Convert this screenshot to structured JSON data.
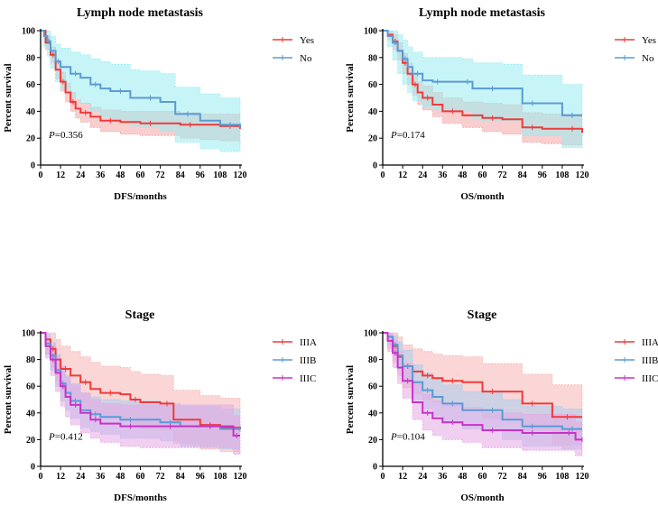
{
  "chart_data": [
    {
      "type": "line",
      "title": "Lymph node metastasis",
      "xlabel": "DFS/months",
      "ylabel": "Percent survival",
      "xlim": [
        0,
        120
      ],
      "ylim": [
        0,
        100
      ],
      "xticks": [
        0,
        12,
        24,
        36,
        48,
        60,
        72,
        84,
        96,
        108,
        120
      ],
      "yticks": [
        0,
        20,
        40,
        60,
        80,
        100
      ],
      "legend_position": "top-right",
      "p_prefix": "P",
      "p_value": "=0.356",
      "series": [
        {
          "name": "Yes",
          "color": "#ee3b3b",
          "band_color": "#f4a5a5",
          "x": [
            0,
            3,
            6,
            9,
            12,
            15,
            18,
            21,
            24,
            30,
            36,
            48,
            60,
            72,
            84,
            96,
            108,
            120
          ],
          "y": [
            100,
            91,
            82,
            71,
            62,
            54,
            47,
            42,
            39,
            36,
            33,
            32,
            31,
            31,
            30,
            30,
            29,
            27
          ],
          "lower": [
            100,
            86,
            76,
            64,
            55,
            47,
            40,
            35,
            32,
            28,
            25,
            23,
            22,
            22,
            20,
            19,
            18,
            16
          ],
          "upper": [
            100,
            96,
            88,
            78,
            69,
            61,
            54,
            49,
            46,
            43,
            41,
            40,
            40,
            40,
            39,
            38,
            38,
            38
          ]
        },
        {
          "name": "No",
          "color": "#5b9bd5",
          "band_color": "#99ecf0",
          "x": [
            0,
            2,
            4,
            6,
            9,
            12,
            18,
            24,
            30,
            36,
            42,
            54,
            60,
            72,
            81,
            96,
            108,
            120
          ],
          "y": [
            100,
            96,
            92,
            85,
            77,
            73,
            68,
            65,
            60,
            57,
            55,
            50,
            50,
            47,
            38,
            33,
            30,
            28
          ],
          "lower": [
            100,
            88,
            81,
            72,
            62,
            57,
            50,
            46,
            40,
            36,
            34,
            29,
            28,
            25,
            17,
            12,
            10,
            10
          ],
          "upper": [
            100,
            100,
            100,
            96,
            90,
            87,
            84,
            82,
            79,
            77,
            75,
            71,
            70,
            68,
            58,
            53,
            50,
            48
          ]
        }
      ]
    },
    {
      "type": "line",
      "title": "Lymph node metastasis",
      "xlabel": "OS/month",
      "ylabel": "Percent survival",
      "xlim": [
        0,
        120
      ],
      "ylim": [
        0,
        100
      ],
      "xticks": [
        0,
        12,
        24,
        36,
        48,
        60,
        72,
        84,
        96,
        108,
        120
      ],
      "yticks": [
        0,
        20,
        40,
        60,
        80,
        100
      ],
      "legend_position": "top-right",
      "p_prefix": "P",
      "p_value": "=0.174",
      "series": [
        {
          "name": "Yes",
          "color": "#ee3b3b",
          "band_color": "#f4a5a5",
          "x": [
            0,
            3,
            6,
            9,
            12,
            15,
            18,
            21,
            24,
            30,
            36,
            48,
            60,
            72,
            84,
            96,
            108,
            120
          ],
          "y": [
            100,
            97,
            92,
            85,
            76,
            68,
            60,
            54,
            50,
            45,
            40,
            37,
            35,
            34,
            28,
            27,
            27,
            24
          ],
          "lower": [
            100,
            93,
            86,
            78,
            68,
            60,
            52,
            45,
            41,
            36,
            31,
            28,
            25,
            23,
            17,
            16,
            15,
            14
          ],
          "upper": [
            100,
            100,
            97,
            91,
            83,
            76,
            68,
            62,
            59,
            54,
            50,
            47,
            46,
            45,
            39,
            38,
            38,
            36
          ]
        },
        {
          "name": "No",
          "color": "#5b9bd5",
          "band_color": "#99ecf0",
          "x": [
            0,
            3,
            6,
            9,
            12,
            15,
            18,
            24,
            30,
            36,
            48,
            54,
            60,
            72,
            84,
            96,
            108,
            120
          ],
          "y": [
            100,
            96,
            91,
            85,
            79,
            73,
            68,
            63,
            62,
            62,
            62,
            57,
            57,
            57,
            46,
            46,
            37,
            37
          ],
          "lower": [
            100,
            88,
            78,
            68,
            60,
            54,
            48,
            43,
            41,
            41,
            40,
            34,
            33,
            33,
            22,
            22,
            13,
            13
          ],
          "upper": [
            100,
            100,
            100,
            97,
            93,
            88,
            84,
            80,
            80,
            80,
            79,
            76,
            76,
            75,
            67,
            67,
            60,
            60
          ]
        }
      ]
    },
    {
      "type": "line",
      "title": "Stage",
      "xlabel": "DFS/months",
      "ylabel": "Percent survival",
      "xlim": [
        0,
        120
      ],
      "ylim": [
        0,
        100
      ],
      "xticks": [
        0,
        12,
        24,
        36,
        48,
        60,
        72,
        84,
        96,
        108,
        120
      ],
      "yticks": [
        0,
        20,
        40,
        60,
        80,
        100
      ],
      "legend_position": "top-right",
      "p_prefix": "P",
      "p_value": "=0.412",
      "series": [
        {
          "name": "IIIA",
          "color": "#ee3b3b",
          "band_color": "#f6b4b4",
          "x": [
            0,
            3,
            6,
            9,
            12,
            18,
            24,
            30,
            36,
            48,
            54,
            60,
            72,
            80,
            96,
            108,
            120
          ],
          "y": [
            100,
            95,
            88,
            80,
            73,
            68,
            63,
            58,
            55,
            54,
            50,
            48,
            47,
            35,
            31,
            29,
            28
          ],
          "lower": [
            100,
            84,
            74,
            64,
            56,
            50,
            44,
            39,
            36,
            34,
            30,
            28,
            27,
            17,
            13,
            11,
            10
          ],
          "upper": [
            100,
            100,
            100,
            95,
            90,
            86,
            82,
            78,
            75,
            74,
            71,
            69,
            68,
            57,
            53,
            51,
            50
          ]
        },
        {
          "name": "IIIB",
          "color": "#5b9bd5",
          "band_color": "#a9ccf0",
          "x": [
            0,
            3,
            6,
            9,
            12,
            15,
            18,
            24,
            30,
            36,
            48,
            60,
            72,
            84,
            96,
            108,
            120
          ],
          "y": [
            100,
            92,
            83,
            72,
            62,
            55,
            49,
            42,
            39,
            37,
            35,
            35,
            33,
            30,
            30,
            28,
            28
          ],
          "lower": [
            100,
            84,
            72,
            60,
            49,
            42,
            36,
            29,
            26,
            24,
            21,
            21,
            19,
            15,
            15,
            13,
            13
          ],
          "upper": [
            100,
            99,
            93,
            84,
            75,
            68,
            62,
            55,
            52,
            50,
            49,
            49,
            47,
            45,
            45,
            43,
            43
          ]
        },
        {
          "name": "IIIC",
          "color": "#c832c8",
          "band_color": "#e3a8e6",
          "x": [
            0,
            3,
            6,
            9,
            12,
            15,
            18,
            24,
            30,
            36,
            48,
            60,
            72,
            84,
            96,
            108,
            116,
            120
          ],
          "y": [
            100,
            90,
            80,
            70,
            60,
            52,
            46,
            40,
            35,
            32,
            30,
            30,
            30,
            30,
            30,
            30,
            23,
            23
          ],
          "lower": [
            100,
            81,
            68,
            56,
            45,
            37,
            31,
            25,
            21,
            18,
            15,
            14,
            14,
            14,
            14,
            14,
            9,
            9
          ],
          "upper": [
            100,
            97,
            91,
            83,
            75,
            67,
            61,
            55,
            50,
            47,
            46,
            46,
            46,
            46,
            46,
            46,
            38,
            38
          ]
        }
      ]
    },
    {
      "type": "line",
      "title": "Stage",
      "xlabel": "OS/month",
      "ylabel": "Percent survival",
      "xlim": [
        0,
        120
      ],
      "ylim": [
        0,
        100
      ],
      "xticks": [
        0,
        12,
        24,
        36,
        48,
        60,
        72,
        84,
        96,
        108,
        120
      ],
      "yticks": [
        0,
        20,
        40,
        60,
        80,
        100
      ],
      "legend_position": "top-right",
      "p_prefix": "P",
      "p_value": "=0.104",
      "series": [
        {
          "name": "IIIA",
          "color": "#ee3b3b",
          "band_color": "#f6b4b4",
          "x": [
            0,
            3,
            6,
            9,
            12,
            18,
            24,
            30,
            36,
            48,
            60,
            72,
            84,
            96,
            102,
            120
          ],
          "y": [
            100,
            97,
            90,
            82,
            75,
            71,
            68,
            66,
            64,
            63,
            56,
            56,
            47,
            47,
            37,
            37
          ],
          "lower": [
            100,
            88,
            78,
            68,
            59,
            54,
            50,
            48,
            45,
            44,
            36,
            36,
            27,
            27,
            16,
            16
          ],
          "upper": [
            100,
            100,
            100,
            97,
            91,
            88,
            86,
            84,
            83,
            82,
            77,
            77,
            69,
            69,
            61,
            61
          ]
        },
        {
          "name": "IIIB",
          "color": "#5b9bd5",
          "band_color": "#a9ccf0",
          "x": [
            0,
            3,
            6,
            9,
            12,
            18,
            24,
            30,
            36,
            48,
            60,
            72,
            84,
            96,
            108,
            120
          ],
          "y": [
            100,
            97,
            91,
            83,
            75,
            63,
            57,
            52,
            47,
            42,
            42,
            35,
            30,
            30,
            28,
            28
          ],
          "lower": [
            100,
            91,
            83,
            72,
            63,
            50,
            43,
            38,
            33,
            28,
            27,
            20,
            15,
            15,
            13,
            13
          ],
          "upper": [
            100,
            100,
            98,
            93,
            87,
            76,
            70,
            66,
            61,
            56,
            56,
            50,
            45,
            45,
            43,
            43
          ]
        },
        {
          "name": "IIIC",
          "color": "#c832c8",
          "band_color": "#e3a8e6",
          "x": [
            0,
            3,
            6,
            9,
            12,
            18,
            24,
            30,
            36,
            48,
            60,
            72,
            84,
            96,
            108,
            116,
            120
          ],
          "y": [
            100,
            94,
            85,
            74,
            64,
            48,
            40,
            36,
            33,
            31,
            27,
            27,
            25,
            25,
            25,
            20,
            20
          ],
          "lower": [
            100,
            86,
            74,
            62,
            51,
            35,
            27,
            23,
            20,
            18,
            14,
            14,
            12,
            12,
            12,
            8,
            8
          ],
          "upper": [
            100,
            100,
            94,
            86,
            77,
            62,
            54,
            49,
            46,
            44,
            40,
            40,
            39,
            39,
            39,
            33,
            33
          ]
        }
      ]
    }
  ]
}
